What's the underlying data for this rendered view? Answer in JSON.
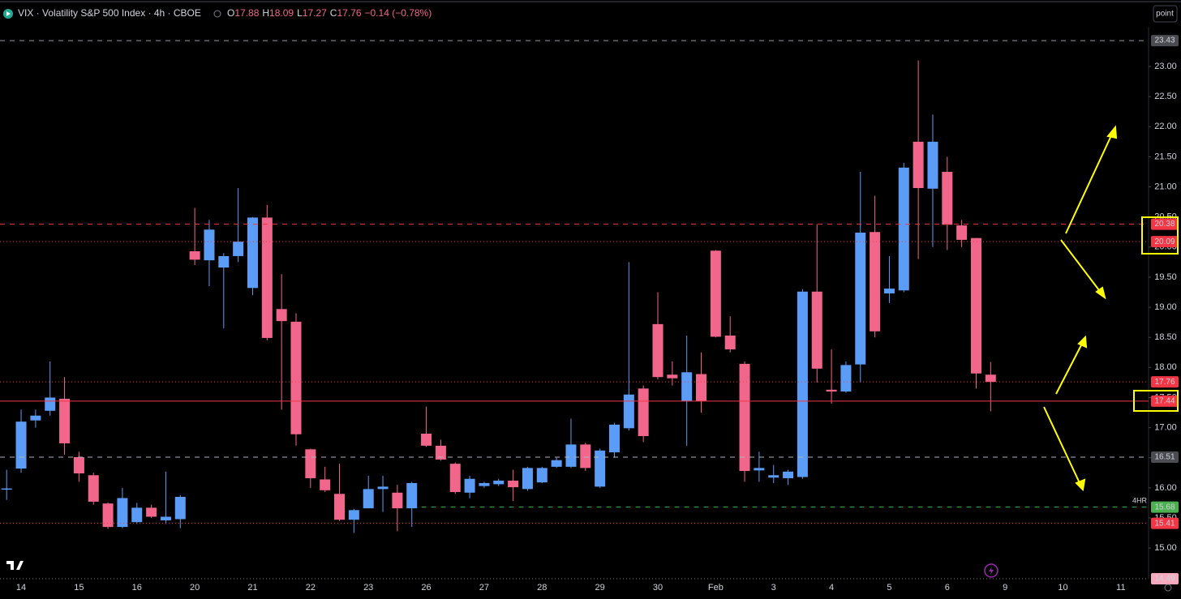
{
  "header": {
    "symbol": "VIX · Volatility S&P 500 Index · 4h · CBOE",
    "ohlc": [
      {
        "key": "O",
        "value": 17.88
      },
      {
        "key": "H",
        "value": 18.09
      },
      {
        "key": "L",
        "value": 17.27
      },
      {
        "key": "C",
        "value": 17.76
      }
    ],
    "change": "−0.14 (−0.78%)",
    "button": "point"
  },
  "chart_data": {
    "type": "candlestick",
    "annotation": "4HR",
    "up_color": "#5b9cf6",
    "down_color": "#f2668b",
    "categories": [
      null,
      "14",
      null,
      null,
      null,
      "15",
      null,
      null,
      null,
      "16",
      null,
      null,
      null,
      "20",
      null,
      null,
      null,
      "21",
      null,
      null,
      null,
      "22",
      null,
      null,
      null,
      "23",
      null,
      null,
      null,
      "26",
      null,
      null,
      null,
      "27",
      null,
      null,
      null,
      "28",
      null,
      null,
      null,
      "29",
      null,
      null,
      null,
      "30",
      null,
      null,
      null,
      "Feb",
      null,
      null,
      null,
      "3",
      null,
      null,
      null,
      "4",
      null,
      null,
      null,
      "5",
      null,
      null,
      null,
      "6",
      null,
      null,
      null,
      "9",
      null,
      null,
      null,
      "10",
      null,
      null,
      null,
      "11",
      null,
      null
    ],
    "open": [
      15.97,
      16.32,
      17.12,
      17.28,
      17.48,
      16.51,
      16.21,
      15.74,
      15.35,
      15.43,
      15.67,
      15.46,
      15.48,
      19.93,
      19.78,
      19.66,
      19.85,
      19.32,
      20.49,
      18.97,
      18.76,
      16.64,
      16.14,
      15.9,
      15.47,
      15.66,
      15.98,
      15.92,
      15.66,
      16.9,
      16.7,
      16.4,
      15.92,
      16.03,
      16.06,
      16.12,
      15.98,
      16.09,
      16.35,
      16.35,
      16.72,
      16.02,
      16.59,
      16.99,
      17.65,
      18.72,
      17.88,
      17.44,
      17.89,
      19.94,
      18.53,
      18.06,
      16.29,
      16.17,
      16.16,
      16.18,
      19.26,
      17.63,
      17.6,
      18.05,
      20.25,
      19.23,
      19.28,
      21.75,
      20.97,
      21.25,
      20.36,
      20.15,
      17.88,
      null,
      null,
      null,
      null,
      null,
      null,
      null,
      null,
      null,
      null,
      null
    ],
    "high": [
      16.3,
      17.3,
      17.3,
      18.1,
      17.84,
      16.6,
      16.25,
      15.76,
      16.0,
      15.75,
      15.72,
      16.27,
      15.88,
      20.65,
      20.45,
      19.9,
      20.98,
      20.5,
      20.7,
      19.55,
      18.9,
      16.65,
      16.35,
      16.4,
      15.65,
      16.2,
      16.2,
      16.05,
      16.1,
      17.35,
      16.8,
      16.42,
      16.2,
      16.1,
      16.15,
      16.3,
      16.35,
      16.35,
      16.5,
      17.15,
      16.75,
      16.65,
      17.08,
      19.75,
      17.7,
      19.25,
      18.1,
      18.53,
      18.25,
      19.95,
      18.85,
      18.1,
      16.6,
      16.38,
      16.3,
      19.3,
      20.38,
      18.3,
      18.1,
      21.25,
      20.85,
      19.85,
      21.4,
      23.1,
      22.2,
      21.5,
      20.45,
      20.15,
      18.09,
      null,
      null,
      null,
      null,
      null,
      null,
      null,
      null,
      null,
      null,
      null
    ],
    "low": [
      15.8,
      16.25,
      17.0,
      17.2,
      16.55,
      16.1,
      15.72,
      15.32,
      15.33,
      15.4,
      15.5,
      15.4,
      15.33,
      19.7,
      19.35,
      18.65,
      19.75,
      19.2,
      18.45,
      17.3,
      16.7,
      16.0,
      15.93,
      15.45,
      15.25,
      15.66,
      15.6,
      15.28,
      15.35,
      16.68,
      16.45,
      15.9,
      15.83,
      16.0,
      16.03,
      15.78,
      15.95,
      16.08,
      16.33,
      16.33,
      16.28,
      16.0,
      16.5,
      16.95,
      16.76,
      17.8,
      17.7,
      16.7,
      17.25,
      18.5,
      18.25,
      16.1,
      16.1,
      16.08,
      16.05,
      16.15,
      17.75,
      17.4,
      17.58,
      17.75,
      18.5,
      19.07,
      19.25,
      19.8,
      20.0,
      19.95,
      20.0,
      17.65,
      17.27,
      null,
      null,
      null,
      null,
      null,
      null,
      null,
      null,
      null,
      null,
      null
    ],
    "close": [
      15.99,
      17.1,
      17.2,
      17.5,
      16.74,
      16.24,
      15.77,
      15.35,
      15.83,
      15.67,
      15.52,
      15.52,
      15.85,
      19.79,
      20.29,
      19.85,
      20.09,
      20.49,
      18.49,
      18.77,
      16.89,
      16.16,
      15.96,
      15.47,
      15.63,
      15.98,
      16.02,
      15.66,
      16.08,
      16.7,
      16.47,
      15.93,
      16.15,
      16.08,
      16.12,
      16.01,
      16.33,
      16.33,
      16.46,
      16.72,
      16.33,
      16.62,
      17.05,
      17.55,
      16.86,
      17.84,
      17.82,
      17.92,
      17.44,
      18.51,
      18.3,
      16.28,
      16.33,
      16.21,
      16.27,
      19.26,
      17.98,
      17.6,
      18.04,
      20.24,
      18.6,
      19.31,
      21.32,
      20.98,
      21.75,
      20.37,
      20.12,
      17.9,
      17.76,
      null,
      null,
      null,
      null,
      null,
      null,
      null,
      null,
      null,
      null,
      null
    ],
    "ylim": [
      14.49,
      23.6
    ],
    "yticks": [
      {
        "value": 15,
        "label": "15.00"
      },
      {
        "value": 15.5,
        "label": "15.50"
      },
      {
        "value": 16,
        "label": "16.00"
      },
      {
        "value": 16.5,
        "label": "16.50"
      },
      {
        "value": 17,
        "label": "17.00"
      },
      {
        "value": 17.5,
        "label": "17.50"
      },
      {
        "value": 18,
        "label": "18.00"
      },
      {
        "value": 18.5,
        "label": "18.50"
      },
      {
        "value": 19,
        "label": "19.00"
      },
      {
        "value": 19.5,
        "label": "19.50"
      },
      {
        "value": 20,
        "label": "20.00"
      },
      {
        "value": 20.5,
        "label": "20.50"
      },
      {
        "value": 21,
        "label": "21.00"
      },
      {
        "value": 21.5,
        "label": "21.50"
      },
      {
        "value": 22,
        "label": "22.00"
      },
      {
        "value": 22.5,
        "label": "22.50"
      },
      {
        "value": 23,
        "label": "23.00"
      }
    ],
    "levels": [
      {
        "value": 23.43,
        "color": "#9598a1",
        "style": "dashed",
        "label_bg": "#4a4c52",
        "label_color": "#ffffff"
      },
      {
        "value": 20.38,
        "color": "#f23645",
        "style": "dashed",
        "label_bg": "#f23645",
        "label_color": "#ffffff"
      },
      {
        "value": 20.09,
        "color": "#f23645",
        "style": "dotted",
        "label_bg": "#f23645",
        "label_color": "#ffffff"
      },
      {
        "value": 17.76,
        "color": "#f23645",
        "style": "dotted",
        "label_bg": "#f23645",
        "label_color": "#ffffff"
      },
      {
        "value": 17.44,
        "color": "#f23645",
        "style": "solid",
        "label_bg": "#f23645",
        "label_color": "#ffffff"
      },
      {
        "value": 16.51,
        "color": "#b2b5be",
        "style": "dashed",
        "label_bg": "#4a4c52",
        "label_color": "#ffffff"
      },
      {
        "value": 15.68,
        "color": "#4caf50",
        "style": "dashed",
        "from": 29,
        "label_bg": "#4caf50",
        "label_color": "#ffffff"
      },
      {
        "value": 15.41,
        "color": "#f23645",
        "style": "dotted",
        "label_bg": "#f23645",
        "label_color": "#ffffff"
      },
      {
        "value": 14.49,
        "color": "#787b86",
        "style": "dotted",
        "label_bg": "#f7a9bd",
        "label_color": "#000000"
      }
    ]
  }
}
